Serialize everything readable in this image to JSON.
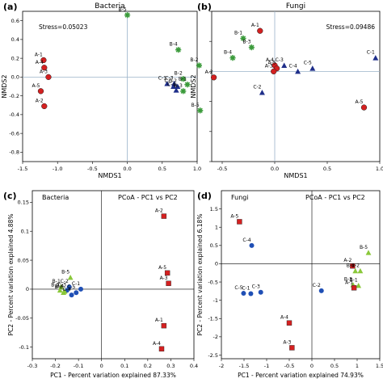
{
  "figure": {
    "panel_labels": [
      "(a)",
      "(b)",
      "(c)",
      "(d)"
    ]
  },
  "colors": {
    "A": "#d42020",
    "B": "#3a9a3a",
    "C": "#1f2f8a",
    "Cblue": "#1f4fb5",
    "Bgreen": "#8ac83a"
  },
  "chart_data": [
    {
      "type": "scatter",
      "panel": "(a)",
      "title": "Bacteria",
      "xlabel": "NMDS1",
      "ylabel": "NMDS2",
      "annotation": "Stress=0.05023",
      "xlim": [
        -1.5,
        1.0
      ],
      "ylim": [
        -0.9,
        0.7
      ],
      "xticks": [
        -1.5,
        -1.0,
        -0.5,
        0.0,
        0.5,
        1.0
      ],
      "xtick_labels": [
        "-1.5",
        "-1.0",
        "-0.5",
        "0.0",
        "0.5",
        "1.0"
      ],
      "yticks": [
        -0.8,
        -0.6,
        -0.4,
        -0.2,
        0.0,
        0.2,
        0.4,
        0.6
      ],
      "ytick_labels": [
        "-0.8",
        "-0.6",
        "-0.4",
        "-0.2",
        "0.0",
        "0.2",
        "0.4",
        "0.6"
      ],
      "points": [
        {
          "label": "B-5",
          "x": 0.0,
          "y": 0.66,
          "g": "B"
        },
        {
          "label": "B-4",
          "x": 0.73,
          "y": 0.29,
          "g": "B"
        },
        {
          "label": "A-1",
          "x": -1.2,
          "y": 0.18,
          "g": "A"
        },
        {
          "label": "A-4",
          "x": -1.19,
          "y": 0.1,
          "g": "A"
        },
        {
          "label": "A-3",
          "x": -1.13,
          "y": 0.0,
          "g": "A"
        },
        {
          "label": "A-5",
          "x": -1.24,
          "y": -0.15,
          "g": "A"
        },
        {
          "label": "A-2",
          "x": -1.19,
          "y": -0.31,
          "g": "A"
        },
        {
          "label": "B-2",
          "x": 0.8,
          "y": -0.02,
          "g": "B"
        },
        {
          "label": "C-1",
          "x": 0.57,
          "y": -0.07,
          "g": "C"
        },
        {
          "label": "C-5",
          "x": 0.66,
          "y": -0.1,
          "g": "C"
        },
        {
          "label": "C-2",
          "x": 0.72,
          "y": -0.1,
          "g": "C"
        },
        {
          "label": "C-3",
          "x": 0.67,
          "y": -0.07,
          "g": "C"
        },
        {
          "label": "C-4",
          "x": 0.7,
          "y": -0.14,
          "g": "C"
        },
        {
          "label": "B-1",
          "x": 0.86,
          "y": -0.08,
          "g": "B"
        },
        {
          "label": "B-3",
          "x": 0.8,
          "y": -0.15,
          "g": "B"
        }
      ]
    },
    {
      "type": "scatter",
      "panel": "(b)",
      "title": "Fungi",
      "xlabel": "NMDS1",
      "ylabel": "NMDS2",
      "annotation": "Stress=0.09486",
      "xlim": [
        -0.6,
        1.0
      ],
      "ylim": [
        -0.6,
        0.4
      ],
      "xticks": [
        -0.5,
        0.0,
        0.5,
        1.0
      ],
      "xtick_labels": [
        "-0.5",
        "0.0",
        "0.5",
        "1.0"
      ],
      "yticks": [
        -0.6,
        -0.4,
        -0.2,
        0.0,
        0.2,
        0.4
      ],
      "ytick_labels": [
        "-0.6",
        "-0.4",
        "-0.2",
        "0.0",
        "0.2",
        "0.4"
      ],
      "points": [
        {
          "label": "A-1",
          "x": -0.14,
          "y": 0.27,
          "g": "A"
        },
        {
          "label": "B-1",
          "x": -0.3,
          "y": 0.22,
          "g": "B"
        },
        {
          "label": "B-3",
          "x": -0.22,
          "y": 0.16,
          "g": "B"
        },
        {
          "label": "B-4",
          "x": -0.4,
          "y": 0.09,
          "g": "B"
        },
        {
          "label": "C-1",
          "x": 0.96,
          "y": 0.09,
          "g": "C"
        },
        {
          "label": "A-4",
          "x": 0.0,
          "y": 0.04,
          "g": "A"
        },
        {
          "label": "C-3",
          "x": 0.09,
          "y": 0.04,
          "g": "C"
        },
        {
          "label": "A-5",
          "x": 0.02,
          "y": 0.02,
          "g": "A"
        },
        {
          "label": "C-5",
          "x": 0.36,
          "y": 0.02,
          "g": "C"
        },
        {
          "label": "A-3",
          "x": -0.01,
          "y": 0.0,
          "g": "A"
        },
        {
          "label": "C-4",
          "x": 0.22,
          "y": 0.0,
          "g": "C"
        },
        {
          "label": "B-2",
          "x": -0.72,
          "y": 0.04,
          "g": "B"
        },
        {
          "label": "A-2",
          "x": -0.58,
          "y": -0.04,
          "g": "A"
        },
        {
          "label": "C-2",
          "x": -0.12,
          "y": -0.14,
          "g": "C"
        },
        {
          "label": "B-5",
          "x": -0.71,
          "y": -0.26,
          "g": "B"
        },
        {
          "label": "A-5",
          "x": 0.85,
          "y": -0.24,
          "g": "A"
        }
      ]
    },
    {
      "type": "scatter",
      "panel": "(c)",
      "title": "Bacteria",
      "subtitle": "PCoA - PC1 vs PC2",
      "xlabel": "PC1 - Percent variation explained 87.33%",
      "ylabel": "PC2 - Percent variation explained 4.88%",
      "xlim": [
        -0.3,
        0.4
      ],
      "ylim": [
        -0.12,
        0.17
      ],
      "xticks": [
        -0.3,
        -0.2,
        -0.1,
        0.0,
        0.1,
        0.2,
        0.3,
        0.4
      ],
      "xtick_labels": [
        "-0.3",
        "-0.2",
        "-0.1",
        "0",
        "0.1",
        "0.2",
        "0.3",
        "0.4"
      ],
      "yticks": [
        -0.1,
        -0.05,
        0.0,
        0.05,
        0.1,
        0.15
      ],
      "ytick_labels": [
        "-0.1",
        "-0.05",
        "0",
        "0.05",
        "0.1",
        "0.15"
      ],
      "points": [
        {
          "label": "A-2",
          "x": 0.27,
          "y": 0.126,
          "g": "A"
        },
        {
          "label": "A-5",
          "x": 0.285,
          "y": 0.028,
          "g": "A"
        },
        {
          "label": "A-3",
          "x": 0.29,
          "y": 0.01,
          "g": "A"
        },
        {
          "label": "B-5",
          "x": -0.135,
          "y": 0.02,
          "g": "Bg"
        },
        {
          "label": "B-1",
          "x": -0.175,
          "y": 0.004,
          "g": "Bg"
        },
        {
          "label": "C-2",
          "x": -0.14,
          "y": 0.004,
          "g": "Cb"
        },
        {
          "label": "C-1",
          "x": -0.09,
          "y": 0.0,
          "g": "Cb"
        },
        {
          "label": "B-3",
          "x": -0.18,
          "y": -0.002,
          "g": "Bg"
        },
        {
          "label": "C-3",
          "x": -0.15,
          "y": -0.002,
          "g": "Cb"
        },
        {
          "label": "B-2",
          "x": -0.165,
          "y": -0.006,
          "g": "Bg"
        },
        {
          "label": "B-4",
          "x": -0.16,
          "y": -0.004,
          "g": "Bg"
        },
        {
          "label": "C-5",
          "x": -0.11,
          "y": -0.006,
          "g": "Cb"
        },
        {
          "label": "C-4",
          "x": -0.13,
          "y": -0.01,
          "g": "Cb"
        },
        {
          "label": "A-1",
          "x": 0.27,
          "y": -0.063,
          "g": "A"
        },
        {
          "label": "A-4",
          "x": 0.26,
          "y": -0.103,
          "g": "A"
        }
      ]
    },
    {
      "type": "scatter",
      "panel": "(d)",
      "title": "Fungi",
      "subtitle": "PCoA - PC1 vs PC2",
      "xlabel": "PC1 - Percent variation explained 74.93%",
      "ylabel": "PC2 - Percent variation explained 6.18%",
      "xlim": [
        -2,
        1.5
      ],
      "ylim": [
        -2.6,
        2.0
      ],
      "xticks": [
        -2,
        -1.5,
        -1,
        -0.5,
        0,
        0.5,
        1,
        1.5
      ],
      "xtick_labels": [
        "-2",
        "-1.5",
        "-1",
        "-0.5",
        "0",
        "0.5",
        "1",
        "1.5"
      ],
      "yticks": [
        -2.5,
        -2,
        -1.5,
        -1,
        -0.5,
        0,
        0.5,
        1,
        1.5
      ],
      "ytick_labels": [
        "-2.5",
        "-2",
        "-1.5",
        "-1",
        "-0.5",
        "0",
        "0.5",
        "1",
        "1.5"
      ],
      "points": [
        {
          "label": "A-5",
          "x": -1.6,
          "y": 1.15,
          "g": "A"
        },
        {
          "label": "C-4",
          "x": -1.33,
          "y": 0.5,
          "g": "Cb"
        },
        {
          "label": "B-5",
          "x": 1.25,
          "y": 0.3,
          "g": "Bg"
        },
        {
          "label": "A-2",
          "x": 0.9,
          "y": -0.06,
          "g": "A"
        },
        {
          "label": "B-4",
          "x": 0.96,
          "y": -0.2,
          "g": "Bg"
        },
        {
          "label": "B-2",
          "x": 1.07,
          "y": -0.2,
          "g": "Bg"
        },
        {
          "label": "B-3",
          "x": 0.91,
          "y": -0.58,
          "g": "Bg"
        },
        {
          "label": "B-1",
          "x": 1.03,
          "y": -0.6,
          "g": "Bg"
        },
        {
          "label": "A-1",
          "x": 0.93,
          "y": -0.66,
          "g": "A"
        },
        {
          "label": "C-2",
          "x": 0.21,
          "y": -0.74,
          "g": "Cb"
        },
        {
          "label": "C-5",
          "x": -1.51,
          "y": -0.81,
          "g": "Cb"
        },
        {
          "label": "C-1",
          "x": -1.35,
          "y": -0.82,
          "g": "Cb"
        },
        {
          "label": "C-3",
          "x": -1.13,
          "y": -0.78,
          "g": "Cb"
        },
        {
          "label": "A-4",
          "x": -0.5,
          "y": -1.62,
          "g": "A"
        },
        {
          "label": "A-3",
          "x": -0.44,
          "y": -2.3,
          "g": "A"
        }
      ]
    }
  ]
}
